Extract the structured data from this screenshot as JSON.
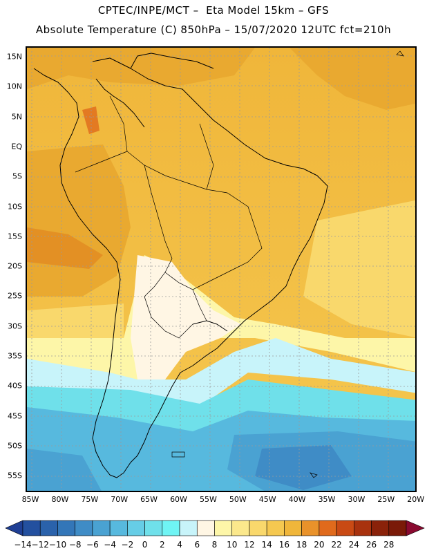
{
  "header": {
    "line1": "CPTEC/INPE/MCT –  Eta Model 15km – GFS",
    "line2": "Absolute Temperature (C) 850hPa – 15/07/2020 12UTC fct=210h"
  },
  "map": {
    "latitude_labels": [
      "15N",
      "10N",
      "5N",
      "EQ",
      "5S",
      "10S",
      "15S",
      "20S",
      "25S",
      "30S",
      "35S",
      "40S",
      "45S",
      "50S",
      "55S"
    ],
    "longitude_labels": [
      "85W",
      "80W",
      "75W",
      "70W",
      "65W",
      "60W",
      "55W",
      "50W",
      "45W",
      "40W",
      "35W",
      "30W",
      "25W",
      "20W"
    ]
  },
  "legend": {
    "labels": [
      "-14",
      "-12",
      "-10",
      "-8",
      "-6",
      "-4",
      "-2",
      "0",
      "2",
      "4",
      "6",
      "8",
      "10",
      "12",
      "14",
      "16",
      "18",
      "20",
      "22",
      "24",
      "26",
      "28"
    ],
    "colors": [
      "#1f3f94",
      "#23509f",
      "#2a62ab",
      "#3376b8",
      "#3f8cc6",
      "#4aa2d2",
      "#57b9de",
      "#66cde6",
      "#6fe0ea",
      "#6ff4f4",
      "#c8f4fa",
      "#fff6e4",
      "#fdf6a8",
      "#fbe88c",
      "#f9d86c",
      "#f5c850",
      "#f0b63a",
      "#e9922a",
      "#e06a1c",
      "#c94a14",
      "#a8320e",
      "#8a220a",
      "#7a1a08",
      "#8a0a30"
    ]
  }
}
